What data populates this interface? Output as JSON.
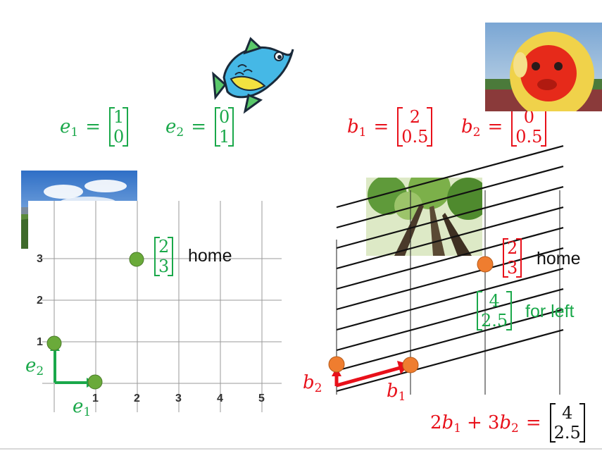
{
  "colors": {
    "green": "#1aa84a",
    "red": "#e8101a",
    "orange": "#ef7d2f",
    "point_green": "#6aaa3a"
  },
  "standard_basis": {
    "e1": {
      "name": "e",
      "sub": "1",
      "vector": [
        "1",
        "0"
      ]
    },
    "e2": {
      "name": "e",
      "sub": "2",
      "vector": [
        "0",
        "1"
      ]
    }
  },
  "custom_basis": {
    "b1": {
      "name": "b",
      "sub": "1",
      "vector": [
        "2",
        "0.5"
      ]
    },
    "b2": {
      "name": "b",
      "sub": "2",
      "vector": [
        "0",
        "0.5"
      ]
    }
  },
  "left_grid": {
    "tick_labels_x": [
      "1",
      "2",
      "3",
      "4",
      "5"
    ],
    "tick_labels_y": [
      "1",
      "2",
      "3"
    ],
    "home_vector": [
      "2",
      "3"
    ],
    "home_label": "home",
    "arrow_labels": {
      "e1": "e",
      "e1_sub": "1",
      "e2": "e",
      "e2_sub": "2"
    }
  },
  "right_grid": {
    "home_vector": [
      "2",
      "3"
    ],
    "home_label": "home",
    "forleft_vector": [
      "4",
      "2.5"
    ],
    "forleft_label": "for left",
    "arrow_labels": {
      "b1": "b",
      "b1_sub": "1",
      "b2": "b",
      "b2_sub": "2"
    }
  },
  "equation": {
    "coef1": "2",
    "sym1": "b",
    "sub1": "1",
    "plus": "+",
    "coef2": "3",
    "sym2": "b",
    "sub2": "2",
    "equals": "=",
    "result": [
      "4",
      "2.5"
    ]
  },
  "images": [
    "fish-icon",
    "monkey-photo",
    "river-photo",
    "forest-photo"
  ]
}
